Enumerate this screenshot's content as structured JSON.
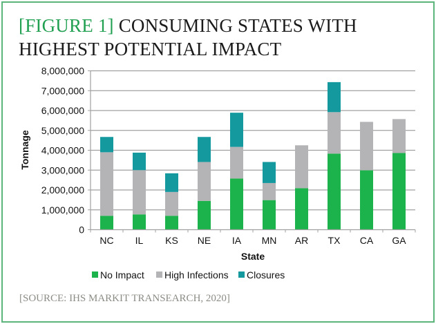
{
  "figure": {
    "label": "[FIGURE 1]",
    "title": " CONSUMING STATES WITH HIGHEST POTENTIAL IMPACT",
    "source": "[SOURCE: IHS MARKIT TRANSEARCH, 2020]"
  },
  "colors": {
    "no_impact": "#1db34c",
    "high_infections": "#b4b4b6",
    "closures": "#14999f",
    "border": "#5bb57a",
    "label_green": "#22a052",
    "grid": "#a0a0a0"
  },
  "chart_data": {
    "type": "bar",
    "stacked": true,
    "title": "[FIGURE 1] CONSUMING STATES WITH HIGHEST POTENTIAL IMPACT",
    "xlabel": "State",
    "ylabel": "Tonnage",
    "ylim": [
      0,
      8000000
    ],
    "yticks": [
      0,
      1000000,
      2000000,
      3000000,
      4000000,
      5000000,
      6000000,
      7000000,
      8000000
    ],
    "ytick_labels": [
      "0",
      "1,000,000",
      "2,000,000",
      "3,000,000",
      "4,000,000",
      "5,000,000",
      "6,000,000",
      "7,000,000",
      "8,000,000"
    ],
    "grid": true,
    "legend_position": "bottom",
    "categories": [
      "NC",
      "IL",
      "KS",
      "NE",
      "IA",
      "MN",
      "AR",
      "TX",
      "CA",
      "GA"
    ],
    "series": [
      {
        "name": "No Impact",
        "color": "#1db34c",
        "values": [
          700000,
          770000,
          700000,
          1450000,
          2580000,
          1490000,
          2090000,
          3830000,
          2990000,
          3860000
        ]
      },
      {
        "name": "High Infections",
        "color": "#b4b4b6",
        "values": [
          3200000,
          2230000,
          1200000,
          1960000,
          1590000,
          860000,
          2160000,
          2090000,
          2440000,
          1710000
        ]
      },
      {
        "name": "Closures",
        "color": "#14999f",
        "values": [
          770000,
          880000,
          940000,
          1260000,
          1720000,
          1060000,
          0,
          1510000,
          0,
          0
        ]
      }
    ],
    "source": "[SOURCE: IHS MARKIT TRANSEARCH, 2020]"
  }
}
